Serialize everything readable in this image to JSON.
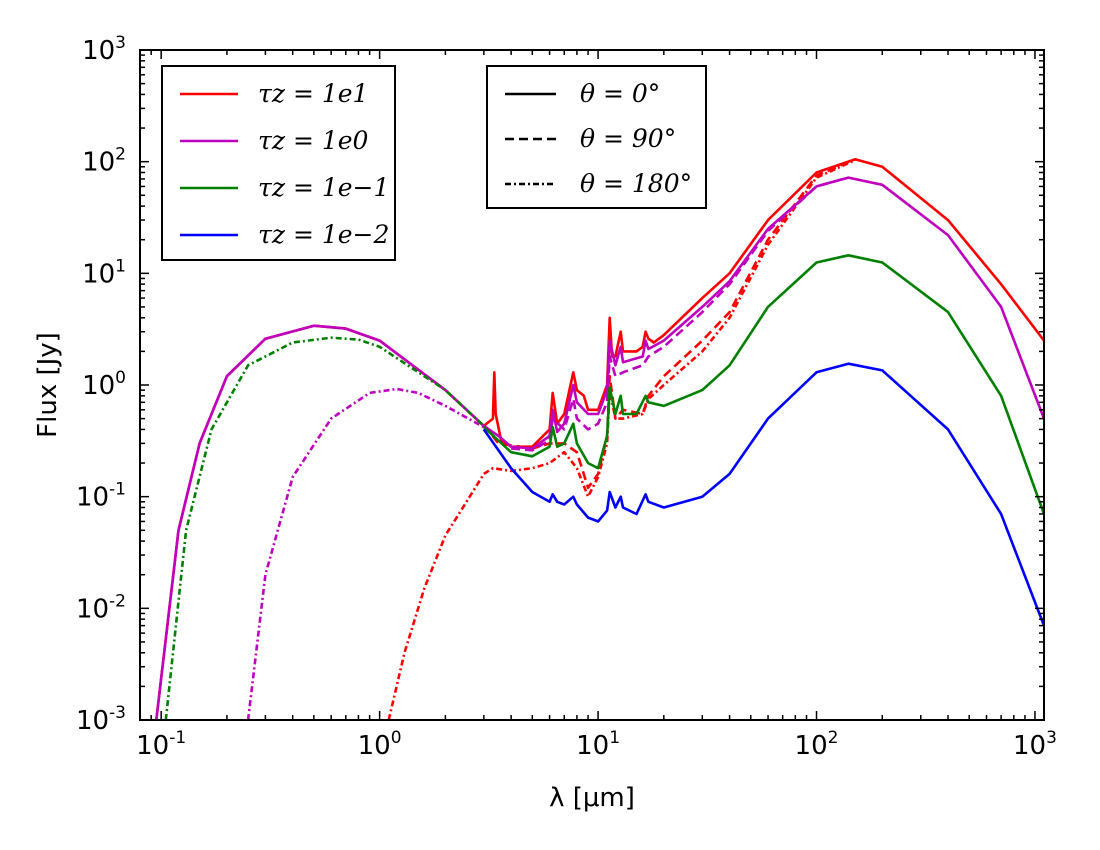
{
  "chart_data": {
    "type": "line",
    "title": "",
    "xlabel": "λ [μm]",
    "ylabel": "Flux [Jy]",
    "xscale": "log",
    "yscale": "log",
    "xlim": [
      0.08,
      1100
    ],
    "ylim": [
      0.001,
      1000
    ],
    "grid": false,
    "x_ticks": [
      {
        "base": "10",
        "exp": "-1"
      },
      {
        "base": "10",
        "exp": "0"
      },
      {
        "base": "10",
        "exp": "1"
      },
      {
        "base": "10",
        "exp": "2"
      },
      {
        "base": "10",
        "exp": "3"
      }
    ],
    "y_ticks": [
      {
        "base": "10",
        "exp": "-3"
      },
      {
        "base": "10",
        "exp": "-2"
      },
      {
        "base": "10",
        "exp": "-1"
      },
      {
        "base": "10",
        "exp": "0"
      },
      {
        "base": "10",
        "exp": "1"
      },
      {
        "base": "10",
        "exp": "2"
      },
      {
        "base": "10",
        "exp": "3"
      }
    ],
    "legend_tau": {
      "placement": "upper-left",
      "entries": [
        {
          "label": "τz = 1e1",
          "color": "#ff0000"
        },
        {
          "label": "τz = 1e0",
          "color": "#bf00bf"
        },
        {
          "label": "τz = 1e−1",
          "color": "#008000"
        },
        {
          "label": "τz = 1e−2",
          "color": "#0000ff"
        }
      ]
    },
    "legend_theta": {
      "placement": "upper-center",
      "entries": [
        {
          "label": "θ = 0°",
          "dash": "solid"
        },
        {
          "label": "θ = 90°",
          "dash": "dashed"
        },
        {
          "label": "θ = 180°",
          "dash": "dashdot"
        }
      ]
    },
    "series": [
      {
        "tau": "1e1",
        "theta": "0",
        "color": "#ff0000",
        "dash": "solid",
        "points": [
          [
            0.095,
            0.001
          ],
          [
            0.12,
            0.05
          ],
          [
            0.15,
            0.3
          ],
          [
            0.2,
            1.2
          ],
          [
            0.3,
            2.6
          ],
          [
            0.5,
            3.4
          ],
          [
            0.7,
            3.2
          ],
          [
            1.0,
            2.5
          ],
          [
            2.0,
            0.9
          ],
          [
            3.0,
            0.43
          ],
          [
            3.3,
            0.5
          ],
          [
            3.35,
            1.3
          ],
          [
            3.4,
            0.55
          ],
          [
            3.6,
            0.32
          ],
          [
            4.0,
            0.28
          ],
          [
            5.0,
            0.28
          ],
          [
            6.0,
            0.4
          ],
          [
            6.2,
            0.85
          ],
          [
            6.5,
            0.45
          ],
          [
            7.0,
            0.55
          ],
          [
            7.7,
            1.3
          ],
          [
            8.0,
            0.9
          ],
          [
            8.6,
            0.8
          ],
          [
            9.0,
            0.6
          ],
          [
            10.0,
            0.6
          ],
          [
            11.0,
            1.0
          ],
          [
            11.3,
            4.0
          ],
          [
            11.6,
            1.8
          ],
          [
            12.0,
            1.8
          ],
          [
            12.7,
            3.0
          ],
          [
            13.0,
            2.0
          ],
          [
            15.0,
            2.0
          ],
          [
            16.0,
            2.2
          ],
          [
            16.5,
            3.0
          ],
          [
            17.0,
            2.6
          ],
          [
            18.0,
            2.4
          ],
          [
            20.0,
            2.8
          ],
          [
            30.0,
            6.0
          ],
          [
            40.0,
            10.0
          ],
          [
            60.0,
            30.0
          ],
          [
            100.0,
            80.0
          ],
          [
            150.0,
            105.0
          ],
          [
            200.0,
            90.0
          ],
          [
            400.0,
            30.0
          ],
          [
            700.0,
            8.0
          ],
          [
            1100.0,
            2.5
          ]
        ]
      },
      {
        "tau": "1e1",
        "theta": "90",
        "color": "#ff0000",
        "dash": "dashed",
        "points": [
          [
            3.0,
            0.44
          ],
          [
            3.5,
            0.3
          ],
          [
            5.0,
            0.27
          ],
          [
            6.0,
            0.3
          ],
          [
            7.0,
            0.3
          ],
          [
            8.0,
            0.25
          ],
          [
            9.0,
            0.12
          ],
          [
            10.0,
            0.16
          ],
          [
            11.0,
            0.35
          ],
          [
            11.3,
            1.2
          ],
          [
            12.0,
            0.5
          ],
          [
            13.0,
            0.6
          ],
          [
            16.0,
            0.55
          ],
          [
            17.0,
            0.8
          ],
          [
            20.0,
            1.2
          ],
          [
            30.0,
            2.5
          ],
          [
            40.0,
            4.5
          ],
          [
            60.0,
            20.0
          ],
          [
            100.0,
            75.0
          ],
          [
            150.0,
            105.0
          ]
        ]
      },
      {
        "tau": "1e1",
        "theta": "180",
        "color": "#ff0000",
        "dash": "dashdot",
        "points": [
          [
            1.1,
            0.001
          ],
          [
            1.3,
            0.004
          ],
          [
            1.6,
            0.015
          ],
          [
            2.0,
            0.045
          ],
          [
            2.5,
            0.09
          ],
          [
            3.0,
            0.16
          ],
          [
            3.3,
            0.18
          ],
          [
            4.0,
            0.17
          ],
          [
            5.0,
            0.18
          ],
          [
            6.0,
            0.2
          ],
          [
            7.0,
            0.25
          ],
          [
            8.0,
            0.18
          ],
          [
            9.0,
            0.1
          ],
          [
            10.0,
            0.15
          ],
          [
            11.0,
            0.3
          ],
          [
            11.3,
            0.9
          ],
          [
            12.0,
            0.5
          ],
          [
            13.0,
            0.5
          ],
          [
            16.0,
            0.55
          ],
          [
            17.0,
            0.75
          ],
          [
            20.0,
            1.0
          ],
          [
            30.0,
            2.0
          ],
          [
            40.0,
            4.0
          ],
          [
            60.0,
            18.0
          ],
          [
            100.0,
            72.0
          ],
          [
            150.0,
            103.0
          ]
        ]
      },
      {
        "tau": "1e0",
        "theta": "0",
        "color": "#bf00bf",
        "dash": "solid",
        "points": [
          [
            0.095,
            0.001
          ],
          [
            0.12,
            0.05
          ],
          [
            0.15,
            0.3
          ],
          [
            0.2,
            1.2
          ],
          [
            0.3,
            2.6
          ],
          [
            0.5,
            3.4
          ],
          [
            0.7,
            3.2
          ],
          [
            1.0,
            2.5
          ],
          [
            2.0,
            0.9
          ],
          [
            3.0,
            0.43
          ],
          [
            3.5,
            0.35
          ],
          [
            4.0,
            0.28
          ],
          [
            5.0,
            0.27
          ],
          [
            6.0,
            0.35
          ],
          [
            6.2,
            0.6
          ],
          [
            6.5,
            0.38
          ],
          [
            7.0,
            0.45
          ],
          [
            7.7,
            1.0
          ],
          [
            8.0,
            0.7
          ],
          [
            9.0,
            0.55
          ],
          [
            10.0,
            0.55
          ],
          [
            11.0,
            0.9
          ],
          [
            11.3,
            2.5
          ],
          [
            12.0,
            1.5
          ],
          [
            12.7,
            2.2
          ],
          [
            13.0,
            1.6
          ],
          [
            16.0,
            1.8
          ],
          [
            16.5,
            2.5
          ],
          [
            17.0,
            2.1
          ],
          [
            20.0,
            2.5
          ],
          [
            30.0,
            5.0
          ],
          [
            40.0,
            8.5
          ],
          [
            60.0,
            25.0
          ],
          [
            100.0,
            60.0
          ],
          [
            140.0,
            72.0
          ],
          [
            200.0,
            62.0
          ],
          [
            400.0,
            22.0
          ],
          [
            700.0,
            5.0
          ],
          [
            1100.0,
            0.5
          ]
        ]
      },
      {
        "tau": "1e0",
        "theta": "90",
        "color": "#bf00bf",
        "dash": "dashed",
        "points": [
          [
            4.0,
            0.27
          ],
          [
            5.0,
            0.26
          ],
          [
            6.0,
            0.32
          ],
          [
            6.2,
            0.5
          ],
          [
            7.0,
            0.4
          ],
          [
            7.7,
            0.75
          ],
          [
            8.0,
            0.5
          ],
          [
            9.0,
            0.4
          ],
          [
            10.0,
            0.45
          ],
          [
            11.0,
            0.7
          ],
          [
            11.3,
            1.8
          ],
          [
            12.0,
            1.2
          ],
          [
            13.0,
            1.3
          ],
          [
            16.0,
            1.5
          ],
          [
            17.0,
            1.8
          ],
          [
            20.0,
            2.2
          ],
          [
            30.0,
            4.5
          ],
          [
            40.0,
            8.0
          ],
          [
            60.0,
            24.0
          ],
          [
            100.0,
            60.0
          ],
          [
            140.0,
            72.0
          ]
        ]
      },
      {
        "tau": "1e0",
        "theta": "180",
        "color": "#bf00bf",
        "dash": "dashdot",
        "points": [
          [
            0.25,
            0.001
          ],
          [
            0.3,
            0.02
          ],
          [
            0.4,
            0.15
          ],
          [
            0.6,
            0.5
          ],
          [
            0.9,
            0.85
          ],
          [
            1.2,
            0.92
          ],
          [
            1.5,
            0.85
          ],
          [
            2.0,
            0.65
          ],
          [
            3.0,
            0.42
          ]
        ]
      },
      {
        "tau": "1e-1",
        "theta": "0",
        "color": "#008000",
        "dash": "solid",
        "points": [
          [
            3.0,
            0.42
          ],
          [
            4.0,
            0.25
          ],
          [
            5.0,
            0.23
          ],
          [
            6.0,
            0.28
          ],
          [
            6.2,
            0.42
          ],
          [
            6.5,
            0.28
          ],
          [
            7.0,
            0.3
          ],
          [
            7.7,
            0.45
          ],
          [
            8.0,
            0.3
          ],
          [
            9.0,
            0.2
          ],
          [
            10.0,
            0.18
          ],
          [
            11.0,
            0.35
          ],
          [
            11.3,
            0.95
          ],
          [
            12.0,
            0.55
          ],
          [
            12.7,
            0.8
          ],
          [
            13.0,
            0.55
          ],
          [
            15.0,
            0.55
          ],
          [
            16.5,
            0.8
          ],
          [
            17.0,
            0.7
          ],
          [
            20.0,
            0.65
          ],
          [
            30.0,
            0.9
          ],
          [
            40.0,
            1.5
          ],
          [
            60.0,
            5.0
          ],
          [
            100.0,
            12.5
          ],
          [
            140.0,
            14.5
          ],
          [
            200.0,
            12.5
          ],
          [
            400.0,
            4.5
          ],
          [
            700.0,
            0.8
          ],
          [
            1100.0,
            0.07
          ]
        ]
      },
      {
        "tau": "1e-1",
        "theta": "180",
        "color": "#008000",
        "dash": "dashdot",
        "points": [
          [
            0.105,
            0.001
          ],
          [
            0.13,
            0.05
          ],
          [
            0.17,
            0.4
          ],
          [
            0.25,
            1.5
          ],
          [
            0.4,
            2.4
          ],
          [
            0.6,
            2.65
          ],
          [
            0.8,
            2.55
          ],
          [
            1.0,
            2.2
          ],
          [
            2.0,
            0.9
          ],
          [
            3.0,
            0.43
          ]
        ]
      },
      {
        "tau": "1e-2",
        "theta": "0",
        "color": "#0000ff",
        "dash": "solid",
        "points": [
          [
            3.0,
            0.4
          ],
          [
            4.0,
            0.18
          ],
          [
            5.0,
            0.11
          ],
          [
            6.0,
            0.09
          ],
          [
            6.2,
            0.105
          ],
          [
            6.5,
            0.09
          ],
          [
            7.0,
            0.085
          ],
          [
            7.7,
            0.1
          ],
          [
            8.0,
            0.085
          ],
          [
            9.0,
            0.065
          ],
          [
            10.0,
            0.06
          ],
          [
            11.0,
            0.075
          ],
          [
            11.3,
            0.11
          ],
          [
            12.0,
            0.08
          ],
          [
            12.7,
            0.1
          ],
          [
            13.0,
            0.08
          ],
          [
            15.0,
            0.07
          ],
          [
            16.5,
            0.105
          ],
          [
            17.0,
            0.09
          ],
          [
            20.0,
            0.08
          ],
          [
            30.0,
            0.1
          ],
          [
            40.0,
            0.16
          ],
          [
            60.0,
            0.5
          ],
          [
            100.0,
            1.3
          ],
          [
            140.0,
            1.55
          ],
          [
            200.0,
            1.35
          ],
          [
            400.0,
            0.4
          ],
          [
            700.0,
            0.07
          ],
          [
            1100.0,
            0.007
          ]
        ]
      }
    ]
  }
}
